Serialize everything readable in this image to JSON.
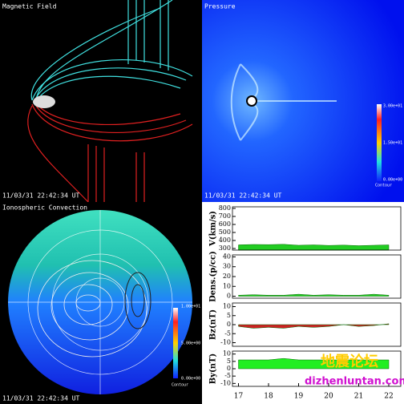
{
  "panels": {
    "magnetic": {
      "title": "Magnetic Field",
      "timestamp": "11/03/31 22:42:34 UT"
    },
    "pressure": {
      "title": "Pressure",
      "timestamp": "11/03/31 22:42:34 UT",
      "colorbar": [
        "3.00e+01",
        "1.50e+01",
        "0.00e+00"
      ],
      "colorbar_title": "Contour"
    },
    "ionosphere": {
      "title": "Ionospheric Convection",
      "timestamp": "11/03/31 22:42:34 UT",
      "colorbar": [
        "1.00e+01",
        "5.00e+00",
        "0.00e+00"
      ],
      "colorbar_title": "Contour"
    }
  },
  "watermark": {
    "chinese": "地震论坛",
    "url": "dizhenluntan.com"
  },
  "chart_data": [
    {
      "type": "area",
      "y_label": "V(km/s)",
      "x": [
        17,
        17.5,
        18,
        18.5,
        19,
        19.5,
        20,
        20.5,
        21,
        21.5,
        22
      ],
      "values": [
        345,
        350,
        348,
        352,
        340,
        345,
        338,
        342,
        335,
        340,
        345
      ],
      "color": "#22cc22",
      "xlim": [
        16.8,
        22.4
      ],
      "ylim": [
        280,
        820
      ],
      "yticks": [
        300,
        400,
        500,
        600,
        700,
        800
      ]
    },
    {
      "type": "area",
      "y_label": "Dens.(p/cc)",
      "x": [
        17,
        17.5,
        18,
        18.5,
        19,
        19.5,
        20,
        20.5,
        21,
        21.5,
        22
      ],
      "values": [
        1,
        1.5,
        1,
        1,
        2,
        1,
        1.5,
        1,
        1,
        2,
        1
      ],
      "color": "#22cc22",
      "xlim": [
        16.8,
        22.4
      ],
      "ylim": [
        -2,
        42
      ],
      "yticks": [
        0,
        10,
        20,
        30,
        40
      ]
    },
    {
      "type": "area",
      "y_label": "Bz(nT)",
      "x": [
        17,
        17.5,
        18,
        18.5,
        19,
        19.5,
        20,
        20.5,
        21,
        21.5,
        22
      ],
      "values": [
        -1,
        -2,
        -1.5,
        -2,
        -1,
        -1.5,
        -1,
        0,
        -1,
        -0.5,
        0.5
      ],
      "color": "#cc2222",
      "xlim": [
        16.8,
        22.4
      ],
      "ylim": [
        -12,
        12
      ],
      "yticks": [
        -10,
        -5,
        0,
        5,
        10
      ]
    },
    {
      "type": "area",
      "y_label": "By(nT)",
      "x": [
        17,
        17.5,
        18,
        18.5,
        19,
        19.5,
        20,
        20.5,
        21,
        21.5,
        22
      ],
      "values": [
        6,
        6,
        6,
        7,
        6,
        6,
        6,
        6,
        6,
        6,
        6
      ],
      "color": "#22ee22",
      "xlim": [
        16.8,
        22.4
      ],
      "ylim": [
        -12,
        12
      ],
      "yticks": [
        -10,
        -5,
        0,
        5,
        10
      ],
      "xticks": [
        17,
        18,
        19,
        20,
        21,
        22
      ]
    }
  ]
}
